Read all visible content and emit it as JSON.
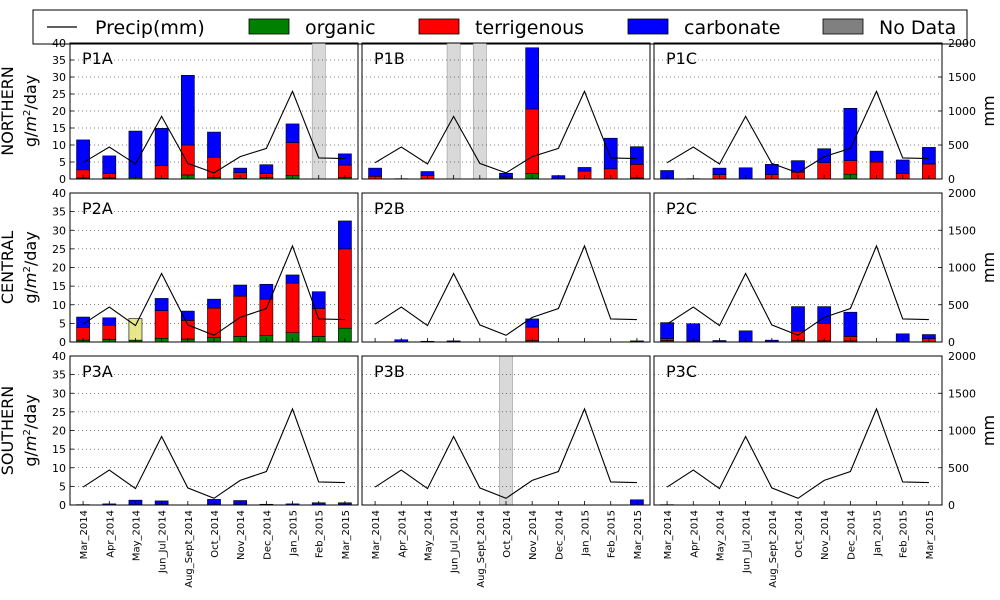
{
  "legend": {
    "position": "top",
    "items": [
      {
        "label": "Precip(mm)",
        "kind": "line",
        "color": "#000000"
      },
      {
        "label": "organic",
        "kind": "patch",
        "color": "#008000"
      },
      {
        "label": "terrigenous",
        "kind": "patch",
        "color": "#ff0000"
      },
      {
        "label": "carbonate",
        "kind": "patch",
        "color": "#0000ff"
      },
      {
        "label": "No Data",
        "kind": "patch",
        "color": "#808080"
      }
    ]
  },
  "row_labels": [
    "NORTHERN",
    "CENTRAL",
    "SOUTHERN"
  ],
  "ylabel_left_suffix": "/day",
  "ylabel_right": "mm",
  "chart_data": {
    "type": "bar",
    "stacked": true,
    "grid": "horizontal dotted",
    "categories": [
      "Mar_2014",
      "Apr_2014",
      "May_2014",
      "Jun_Jul_2014",
      "Aug_Sept_2014",
      "Oct_2014",
      "Nov_2014",
      "Dec_2014",
      "Jan_2015",
      "Feb_2015",
      "Mar_2015"
    ],
    "ylim_left": [
      0,
      40
    ],
    "yticks_left": [
      0,
      5,
      10,
      15,
      20,
      25,
      30,
      35,
      40
    ],
    "ylim_right": [
      0,
      2000
    ],
    "yticks_right": [
      0,
      500,
      1000,
      1500,
      2000
    ],
    "precip_mm": [
      240,
      470,
      220,
      920,
      230,
      90,
      330,
      450,
      1290,
      310,
      300
    ],
    "panels": [
      {
        "label": "P1A",
        "row": 0,
        "col": 0,
        "organic": [
          0.3,
          0.3,
          0.5,
          0.2,
          1.2,
          0.4,
          0.2,
          0.4,
          1.0,
          0,
          0.5
        ],
        "terrigenous": [
          2.4,
          1.3,
          0,
          3.7,
          8.8,
          6.0,
          1.7,
          1.2,
          9.7,
          0,
          3.6
        ],
        "carbonate": [
          8.8,
          5.2,
          13.6,
          11.0,
          20.5,
          7.4,
          1.3,
          2.6,
          5.5,
          0,
          3.3
        ],
        "no_data_bands": [
          9
        ]
      },
      {
        "label": "P1B",
        "row": 0,
        "col": 1,
        "organic": [
          0,
          0,
          0,
          0,
          0,
          0.3,
          1.6,
          0,
          0,
          0,
          0.3
        ],
        "terrigenous": [
          0.8,
          0,
          1.0,
          0,
          0,
          0.3,
          19.0,
          0,
          2.3,
          3.0,
          4.0
        ],
        "carbonate": [
          2.4,
          0.1,
          1.2,
          0,
          0,
          1.1,
          18.0,
          1.0,
          1.1,
          9.0,
          5.2
        ],
        "no_data_bands": [
          3,
          4
        ]
      },
      {
        "label": "P1C",
        "row": 0,
        "col": 2,
        "organic": [
          0,
          0,
          0,
          0,
          0,
          0,
          0,
          1.4,
          0,
          0,
          0
        ],
        "terrigenous": [
          0,
          0,
          1.3,
          0,
          1.3,
          2.0,
          4.8,
          4.0,
          5.0,
          1.6,
          4.4
        ],
        "carbonate": [
          2.5,
          0.1,
          1.9,
          3.3,
          3.0,
          3.4,
          4.1,
          15.4,
          3.2,
          4.0,
          4.9
        ],
        "no_data_bands": []
      },
      {
        "label": "P2A",
        "row": 1,
        "col": 0,
        "organic": [
          0.5,
          0.7,
          0.5,
          1.0,
          0.8,
          1.2,
          1.5,
          1.8,
          2.5,
          1.5,
          3.7
        ],
        "terrigenous": [
          3.4,
          3.8,
          0,
          7.4,
          5.0,
          7.9,
          10.8,
          9.7,
          13.3,
          7.5,
          21.3
        ],
        "carbonate": [
          2.8,
          2.0,
          0,
          3.3,
          2.5,
          2.4,
          3.0,
          4.0,
          2.2,
          4.5,
          7.5
        ],
        "unknown": [
          0,
          0,
          5.8,
          0,
          0,
          0,
          0,
          0,
          0,
          0,
          0
        ],
        "no_data_bands": []
      },
      {
        "label": "P2B",
        "row": 1,
        "col": 1,
        "organic": [
          0,
          0,
          0,
          0,
          0,
          0,
          0.4,
          0,
          0,
          0,
          0
        ],
        "terrigenous": [
          0,
          0.1,
          0,
          0.1,
          0,
          0,
          3.6,
          0,
          0,
          0,
          0
        ],
        "carbonate": [
          0,
          0.5,
          0.2,
          0.2,
          0,
          0,
          2.2,
          0,
          0,
          0,
          0.3
        ],
        "no_data_bands": []
      },
      {
        "label": "P2C",
        "row": 1,
        "col": 2,
        "organic": [
          0.4,
          0.1,
          0,
          0,
          0,
          0.4,
          0.3,
          0.3,
          0,
          0,
          0
        ],
        "terrigenous": [
          0.5,
          0.2,
          0.1,
          0.2,
          0.1,
          2.5,
          4.7,
          1.2,
          0,
          0,
          0.9
        ],
        "carbonate": [
          4.3,
          4.6,
          0.3,
          2.8,
          0.4,
          6.6,
          4.5,
          6.5,
          0,
          2.2,
          1.1
        ],
        "no_data_bands": []
      },
      {
        "label": "P3A",
        "row": 2,
        "col": 0,
        "organic": [
          0,
          0,
          0,
          0,
          0,
          0,
          0,
          0,
          0,
          0,
          0
        ],
        "terrigenous": [
          0,
          0,
          0.1,
          0.1,
          0,
          0.1,
          0.1,
          0,
          0,
          0,
          0.1
        ],
        "carbonate": [
          0.1,
          0.3,
          1.2,
          1.0,
          0,
          1.4,
          1.1,
          0.2,
          0.3,
          0.6,
          0.5
        ],
        "no_data_bands": []
      },
      {
        "label": "P3B",
        "row": 2,
        "col": 1,
        "organic": [
          0,
          0,
          0,
          0,
          0,
          0,
          0,
          0,
          0,
          0,
          0
        ],
        "terrigenous": [
          0,
          0,
          0,
          0,
          0,
          0,
          0,
          0,
          0,
          0,
          0
        ],
        "carbonate": [
          0,
          0,
          0,
          0,
          0,
          0,
          0,
          0,
          0,
          0,
          1.4
        ],
        "no_data_bands": [
          5
        ]
      },
      {
        "label": "P3C",
        "row": 2,
        "col": 2,
        "organic": [
          0,
          0,
          0,
          0,
          0,
          0,
          0,
          0,
          0,
          0,
          0
        ],
        "terrigenous": [
          0,
          0,
          0,
          0,
          0,
          0,
          0,
          0,
          0,
          0,
          0
        ],
        "carbonate": [
          0.1,
          0,
          0,
          0,
          0,
          0,
          0,
          0,
          0,
          0,
          0
        ],
        "no_data_bands": []
      }
    ],
    "colors": {
      "organic": "#008000",
      "terrigenous": "#ff0000",
      "carbonate": "#0000ff",
      "unknown": "#e6e68a",
      "no_data": "#d9d9d9",
      "precip": "#000000"
    }
  }
}
